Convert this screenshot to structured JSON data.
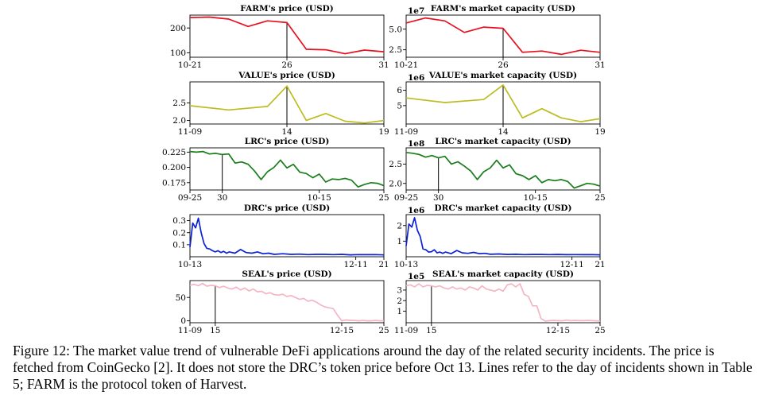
{
  "chart_data": [
    {
      "id": "farm-price",
      "type": "line",
      "title": "FARM's price (USD)",
      "color": "#e8101e",
      "xticks": [
        {
          "label": "10-21",
          "pos": 0
        },
        {
          "label": "26",
          "pos": 5
        },
        {
          "label": "31",
          "pos": 10
        }
      ],
      "yticks": [
        {
          "label": "100",
          "value": 100
        },
        {
          "label": "200",
          "value": 200
        }
      ],
      "ylim": [
        82,
        252
      ],
      "multiplier": "",
      "x": [
        0,
        1,
        2,
        3,
        4,
        5,
        6,
        7,
        8,
        9,
        10
      ],
      "values": [
        242,
        244,
        236,
        206,
        229,
        222,
        114,
        112,
        96,
        111,
        104
      ],
      "incident": 5
    },
    {
      "id": "farm-cap",
      "type": "line",
      "title": "FARM's market capacity (USD)",
      "color": "#e8101e",
      "xticks": [
        {
          "label": "10-21",
          "pos": 0
        },
        {
          "label": "26",
          "pos": 5
        },
        {
          "label": "31",
          "pos": 10
        }
      ],
      "yticks": [
        {
          "label": "2.5",
          "value": 2.5
        },
        {
          "label": "5.0",
          "value": 5.0
        }
      ],
      "ylim": [
        1.6,
        6.7
      ],
      "multiplier": "1e7",
      "x": [
        0,
        1,
        2,
        3,
        4,
        5,
        6,
        7,
        8,
        9,
        10
      ],
      "values": [
        5.75,
        6.35,
        6.0,
        4.6,
        5.25,
        5.1,
        2.2,
        2.35,
        1.95,
        2.45,
        2.2
      ],
      "incident": 5
    },
    {
      "id": "value-price",
      "type": "line",
      "title": "VALUE's price (USD)",
      "color": "#bcbd22",
      "xticks": [
        {
          "label": "11-09",
          "pos": 0
        },
        {
          "label": "14",
          "pos": 5
        },
        {
          "label": "19",
          "pos": 10
        }
      ],
      "yticks": [
        {
          "label": "2.0",
          "value": 2.0
        },
        {
          "label": "2.5",
          "value": 2.5
        }
      ],
      "ylim": [
        1.9,
        3.1
      ],
      "multiplier": "",
      "x": [
        0,
        2,
        4,
        5,
        6,
        7,
        8,
        9,
        10
      ],
      "values": [
        2.42,
        2.3,
        2.4,
        2.98,
        2.0,
        2.2,
        1.98,
        1.93,
        2.0
      ],
      "incident": 5
    },
    {
      "id": "value-cap",
      "type": "line",
      "title": "VALUE's market capacity (USD)",
      "color": "#bcbd22",
      "xticks": [
        {
          "label": "11-09",
          "pos": 0
        },
        {
          "label": "14",
          "pos": 5
        },
        {
          "label": "19",
          "pos": 10
        }
      ],
      "yticks": [
        {
          "label": "5",
          "value": 5
        },
        {
          "label": "6",
          "value": 6
        }
      ],
      "ylim": [
        3.8,
        6.55
      ],
      "multiplier": "1e6",
      "x": [
        0,
        2,
        4,
        5,
        6,
        7,
        8,
        9,
        10
      ],
      "values": [
        5.5,
        5.2,
        5.4,
        6.35,
        4.2,
        4.8,
        4.2,
        3.95,
        4.15
      ],
      "incident": 5
    },
    {
      "id": "lrc-price",
      "type": "line",
      "title": "LRC's price (USD)",
      "color": "#1a7e1a",
      "xticks": [
        {
          "label": "09-25",
          "pos": 0
        },
        {
          "label": "30",
          "pos": 5
        },
        {
          "label": "10-15",
          "pos": 20
        },
        {
          "label": "25",
          "pos": 30
        }
      ],
      "yticks": [
        {
          "label": "0.175",
          "value": 0.175
        },
        {
          "label": "0.200",
          "value": 0.2
        },
        {
          "label": "0.225",
          "value": 0.225
        }
      ],
      "ylim": [
        0.163,
        0.232
      ],
      "multiplier": "",
      "x": [
        0,
        1,
        2,
        3,
        4,
        5,
        6,
        7,
        8,
        9,
        10,
        11,
        12,
        13,
        14,
        15,
        16,
        17,
        18,
        19,
        20,
        21,
        22,
        23,
        24,
        25,
        26,
        27,
        28,
        29,
        30
      ],
      "values": [
        0.226,
        0.225,
        0.226,
        0.222,
        0.223,
        0.221,
        0.222,
        0.207,
        0.209,
        0.205,
        0.194,
        0.18,
        0.193,
        0.2,
        0.212,
        0.199,
        0.205,
        0.192,
        0.19,
        0.183,
        0.189,
        0.176,
        0.181,
        0.18,
        0.182,
        0.179,
        0.168,
        0.172,
        0.175,
        0.174,
        0.17
      ],
      "incident": 5
    },
    {
      "id": "lrc-cap",
      "type": "line",
      "title": "LRC's market capacity (USD)",
      "color": "#1a7e1a",
      "xticks": [
        {
          "label": "09-25",
          "pos": 0
        },
        {
          "label": "30",
          "pos": 5
        },
        {
          "label": "10-15",
          "pos": 20
        },
        {
          "label": "25",
          "pos": 30
        }
      ],
      "yticks": [
        {
          "label": "2.0",
          "value": 2.0
        },
        {
          "label": "2.5",
          "value": 2.5
        }
      ],
      "ylim": [
        1.83,
        2.92
      ],
      "multiplier": "1e8",
      "x": [
        0,
        1,
        2,
        3,
        4,
        5,
        6,
        7,
        8,
        9,
        10,
        11,
        12,
        13,
        14,
        15,
        16,
        17,
        18,
        19,
        20,
        21,
        22,
        23,
        24,
        25,
        26,
        27,
        28,
        29,
        30
      ],
      "values": [
        2.8,
        2.78,
        2.75,
        2.68,
        2.72,
        2.66,
        2.7,
        2.5,
        2.56,
        2.45,
        2.32,
        2.1,
        2.3,
        2.4,
        2.6,
        2.4,
        2.48,
        2.25,
        2.2,
        2.1,
        2.2,
        2.02,
        2.1,
        2.07,
        2.1,
        2.05,
        1.88,
        1.94,
        2.0,
        1.98,
        1.93
      ],
      "incident": 5
    },
    {
      "id": "drc-price",
      "type": "line",
      "title": "DRC's price (USD)",
      "color": "#0b21d6",
      "xticks": [
        {
          "label": "10-13",
          "pos": 0
        },
        {
          "label": "12-11",
          "pos": 59
        },
        {
          "label": "21",
          "pos": 69
        }
      ],
      "yticks": [
        {
          "label": "0.1",
          "value": 0.1
        },
        {
          "label": "0.2",
          "value": 0.2
        },
        {
          "label": "0.3",
          "value": 0.3
        }
      ],
      "ylim": [
        0.0,
        0.35
      ],
      "multiplier": "",
      "x": [
        0,
        1,
        2,
        3,
        4,
        5,
        6,
        7,
        8,
        9,
        10,
        11,
        12,
        13,
        14,
        16,
        18,
        20,
        22,
        24,
        26,
        28,
        30,
        33,
        36,
        39,
        42,
        45,
        48,
        51,
        54,
        57,
        60,
        63,
        66,
        69
      ],
      "values": [
        0.08,
        0.28,
        0.24,
        0.32,
        0.2,
        0.11,
        0.07,
        0.065,
        0.05,
        0.04,
        0.05,
        0.035,
        0.045,
        0.03,
        0.04,
        0.03,
        0.06,
        0.035,
        0.03,
        0.04,
        0.025,
        0.03,
        0.02,
        0.025,
        0.02,
        0.022,
        0.018,
        0.02,
        0.02,
        0.018,
        0.02,
        0.016,
        0.018,
        0.017,
        0.018,
        0.015
      ],
      "incident": null
    },
    {
      "id": "drc-cap",
      "type": "line",
      "title": "DRC's market capacity (USD)",
      "color": "#0b21d6",
      "xticks": [
        {
          "label": "10-13",
          "pos": 0
        },
        {
          "label": "12-11",
          "pos": 59
        },
        {
          "label": "21",
          "pos": 69
        }
      ],
      "yticks": [
        {
          "label": "1",
          "value": 1
        },
        {
          "label": "2",
          "value": 2
        }
      ],
      "ylim": [
        0.0,
        2.7
      ],
      "multiplier": "1e6",
      "x": [
        0,
        1,
        2,
        3,
        4,
        5,
        6,
        7,
        8,
        9,
        10,
        11,
        12,
        13,
        14,
        16,
        18,
        20,
        22,
        24,
        26,
        28,
        30,
        33,
        36,
        39,
        42,
        45,
        48,
        51,
        54,
        57,
        60,
        63,
        66,
        69
      ],
      "values": [
        0.7,
        2.1,
        1.9,
        2.5,
        1.7,
        1.3,
        0.5,
        0.45,
        0.3,
        0.32,
        0.45,
        0.25,
        0.3,
        0.22,
        0.3,
        0.2,
        0.4,
        0.25,
        0.22,
        0.28,
        0.2,
        0.22,
        0.16,
        0.18,
        0.15,
        0.16,
        0.14,
        0.15,
        0.15,
        0.14,
        0.15,
        0.13,
        0.14,
        0.13,
        0.14,
        0.12
      ],
      "incident": null
    },
    {
      "id": "seal-price",
      "type": "line",
      "title": "SEAL's price (USD)",
      "color": "#f4b6c4",
      "xticks": [
        {
          "label": "11-09",
          "pos": 0
        },
        {
          "label": "15",
          "pos": 6
        },
        {
          "label": "12-15",
          "pos": 36
        },
        {
          "label": "25",
          "pos": 46
        }
      ],
      "yticks": [
        {
          "label": "0",
          "value": 0
        },
        {
          "label": "50",
          "value": 50
        }
      ],
      "ylim": [
        -4,
        86
      ],
      "multiplier": "",
      "x": [
        0,
        1,
        2,
        3,
        4,
        5,
        6,
        7,
        8,
        9,
        10,
        11,
        12,
        13,
        14,
        15,
        16,
        17,
        18,
        19,
        20,
        21,
        22,
        23,
        24,
        25,
        26,
        27,
        28,
        29,
        30,
        31,
        32,
        33,
        34,
        35,
        36,
        37,
        38,
        39,
        40,
        41,
        42,
        43,
        44,
        45,
        46
      ],
      "values": [
        76,
        78,
        75,
        80,
        74,
        76,
        75,
        71,
        74,
        70,
        68,
        72,
        66,
        70,
        64,
        68,
        62,
        63,
        58,
        60,
        56,
        55,
        57,
        52,
        54,
        50,
        46,
        48,
        42,
        44,
        40,
        34,
        30,
        28,
        26,
        12,
        0,
        2,
        1,
        1,
        0,
        1,
        0,
        0,
        1,
        0,
        0
      ],
      "incident": 6
    },
    {
      "id": "seal-cap",
      "type": "line",
      "title": "SEAL's market capacity (USD)",
      "color": "#f4b6c4",
      "xticks": [
        {
          "label": "11-09",
          "pos": 0
        },
        {
          "label": "15",
          "pos": 6
        },
        {
          "label": "12-15",
          "pos": 36
        },
        {
          "label": "25",
          "pos": 46
        }
      ],
      "yticks": [
        {
          "label": "1",
          "value": 1
        },
        {
          "label": "2",
          "value": 2
        },
        {
          "label": "3",
          "value": 3
        }
      ],
      "ylim": [
        -0.1,
        3.9
      ],
      "multiplier": "1e5",
      "x": [
        0,
        1,
        2,
        3,
        4,
        5,
        6,
        7,
        8,
        9,
        10,
        11,
        12,
        13,
        14,
        15,
        16,
        17,
        18,
        19,
        20,
        21,
        22,
        23,
        24,
        25,
        26,
        27,
        28,
        29,
        30,
        31,
        32,
        33,
        34,
        35,
        36,
        37,
        38,
        39,
        40,
        41,
        42,
        43,
        44,
        45,
        46
      ],
      "values": [
        3.4,
        3.5,
        3.3,
        3.6,
        3.3,
        3.45,
        3.4,
        3.3,
        3.4,
        3.2,
        3.1,
        3.3,
        3.1,
        3.2,
        3.0,
        3.3,
        3.2,
        3.0,
        3.4,
        3.1,
        3.0,
        2.9,
        3.1,
        2.9,
        3.5,
        3.6,
        3.3,
        3.6,
        2.6,
        2.4,
        1.5,
        1.5,
        0.3,
        0.05,
        0.1,
        0.12,
        0.1,
        0.08,
        0.15,
        0.1,
        0.12,
        0.1,
        0.1,
        0.12,
        0.1,
        0.08,
        0.05
      ],
      "incident": 6
    }
  ],
  "caption": "Figure 12: The market value trend of vulnerable DeFi applications around the day of the related security incidents. The price is fetched from CoinGecko [2]. It does not store the DRC’s token price before Oct 13. Lines refer to the day of incidents shown in Table 5; FARM is the protocol token of Harvest."
}
